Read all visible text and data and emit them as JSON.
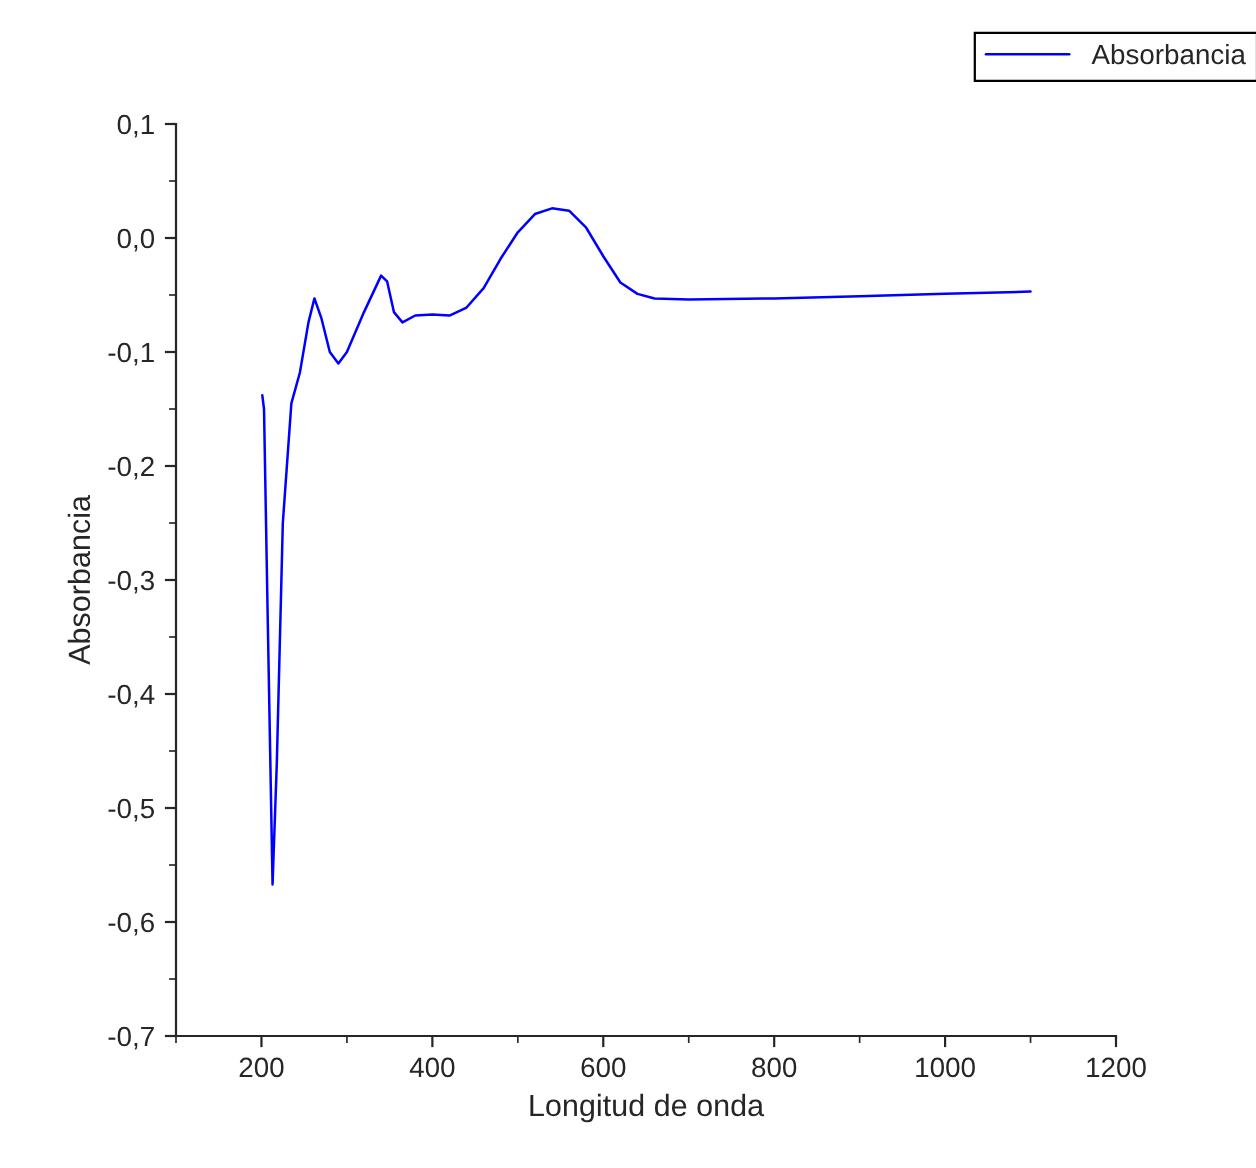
{
  "chart_data": {
    "type": "line",
    "xlabel": "Longitud de onda",
    "ylabel": "Absorbancia",
    "xlim": [
      100,
      1200
    ],
    "xticks": [
      200,
      400,
      600,
      800,
      1000,
      1200
    ],
    "ylim": [
      -0.7,
      0.1
    ],
    "yticks": [
      {
        "value": -0.7,
        "label": "-0,7"
      },
      {
        "value": -0.6,
        "label": "-0,6"
      },
      {
        "value": -0.5,
        "label": "-0,5"
      },
      {
        "value": -0.4,
        "label": "-0,4"
      },
      {
        "value": -0.3,
        "label": "-0,3"
      },
      {
        "value": -0.2,
        "label": "-0,2"
      },
      {
        "value": -0.1,
        "label": "-0,1"
      },
      {
        "value": 0.0,
        "label": "0,0"
      },
      {
        "value": 0.1,
        "label": "0,1"
      }
    ],
    "grid": false,
    "legend": "top right",
    "marker": "none",
    "line_style": "solid",
    "series": [
      {
        "name": "Absorbancia",
        "color": "#0000ff",
        "x": [
          201,
          203,
          207,
          213,
          218,
          225,
          235,
          245,
          255,
          262,
          270,
          280,
          290,
          300,
          320,
          340,
          347,
          355,
          365,
          380,
          400,
          420,
          440,
          460,
          480,
          500,
          520,
          540,
          560,
          580,
          600,
          620,
          640,
          660,
          700,
          800,
          900,
          1000,
          1100
        ],
        "values": [
          -0.138,
          -0.15,
          -0.32,
          -0.567,
          -0.46,
          -0.25,
          -0.145,
          -0.118,
          -0.074,
          -0.053,
          -0.07,
          -0.1,
          -0.11,
          -0.1,
          -0.065,
          -0.033,
          -0.038,
          -0.065,
          -0.074,
          -0.068,
          -0.067,
          -0.068,
          -0.061,
          -0.044,
          -0.018,
          0.005,
          0.021,
          0.026,
          0.024,
          0.009,
          -0.016,
          -0.039,
          -0.049,
          -0.053,
          -0.054,
          -0.053,
          -0.051,
          -0.049,
          -0.047
        ]
      }
    ]
  }
}
